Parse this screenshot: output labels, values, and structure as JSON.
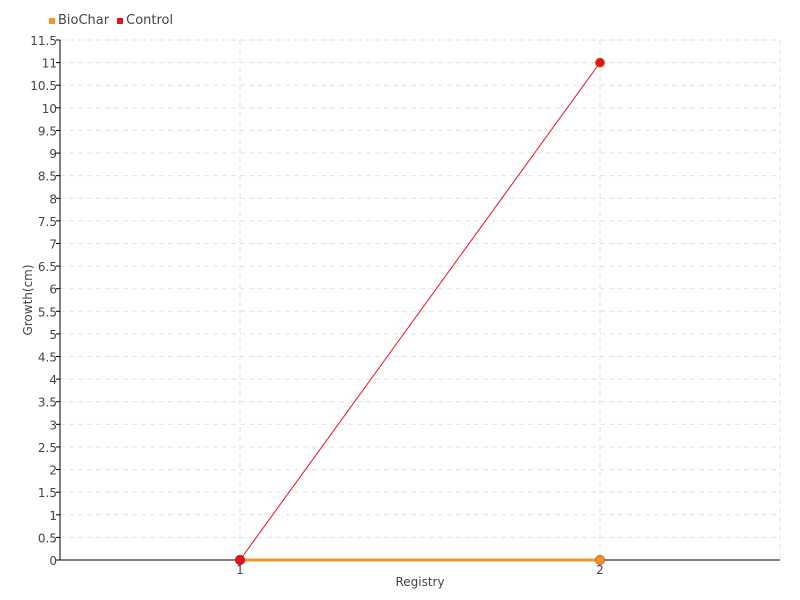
{
  "chart_data": {
    "type": "line",
    "xlabel": "Registry",
    "ylabel": "Growth(cm)",
    "x": [
      1,
      2
    ],
    "xlim": [
      0.5,
      2.5
    ],
    "ylim": [
      0,
      11.5
    ],
    "ytick_step": 0.5,
    "xticks": [
      "1",
      "2"
    ],
    "grid": true,
    "legend_placement": "top-left",
    "series": [
      {
        "name": "BioChar",
        "values": [
          0,
          0
        ],
        "color": "#f7932b"
      },
      {
        "name": "Control",
        "values": [
          0,
          11
        ],
        "color": "#e8121f"
      }
    ]
  }
}
